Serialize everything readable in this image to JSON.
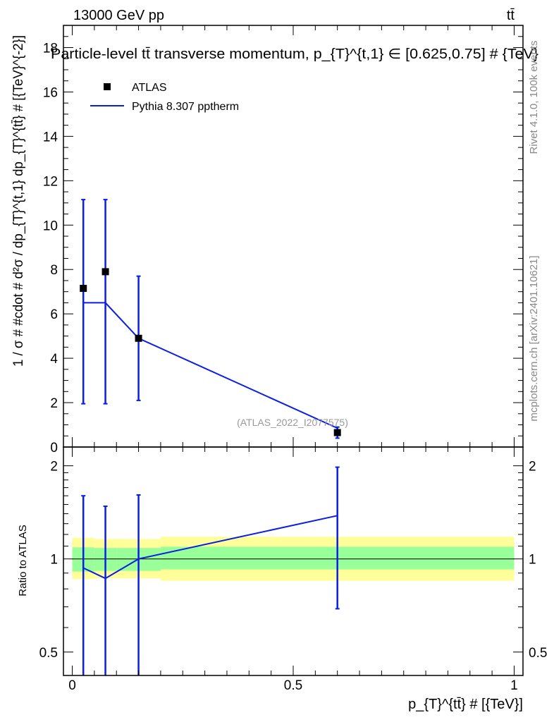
{
  "header": {
    "left": "13000 GeV pp",
    "right": "tt̄"
  },
  "side_labels": {
    "rivet": "Rivet 4.1.0,  100k events",
    "mcplots": "mcplots.cern.ch [arXiv:2401.10621]"
  },
  "watermark": "(ATLAS_2022_I2077575)",
  "colors": {
    "mc": "#0a1ee6",
    "data": "#000000",
    "band_inner": "#99ff99",
    "band_outer": "#ffff99"
  },
  "chart_data": [
    {
      "type": "line",
      "panel": "main",
      "title": "Particle-level tt̄ transverse momentum, p_{T}^{t,1} ∈ [0.625,0.75] # {TeV}",
      "ylabel": "1 / σ # #cdot # d²σ / dp_{T}^{t,1} dp_{T}^{tt̄} # [{TeV}^{-2}]",
      "xlim": [
        -0.02,
        1.02
      ],
      "ylim": [
        0,
        19
      ],
      "yticks": [
        0,
        2,
        4,
        6,
        8,
        10,
        12,
        14,
        16,
        18
      ],
      "legend": [
        "ATLAS",
        "Pythia 8.307 pptherm"
      ],
      "legend_position": "top-left",
      "data": {
        "name": "ATLAS",
        "x": [
          0.025,
          0.075,
          0.15,
          0.6
        ],
        "y": [
          7.15,
          7.9,
          4.9,
          0.65
        ],
        "err_up": [
          4.0,
          3.25,
          2.8,
          0.25
        ],
        "err_down": [
          5.2,
          5.95,
          2.8,
          0.25
        ]
      },
      "mc": {
        "name": "Pythia 8.307 pptherm",
        "x": [
          0.025,
          0.075,
          0.15,
          0.6
        ],
        "y": [
          6.5,
          6.5,
          4.9,
          0.85
        ]
      }
    },
    {
      "type": "line",
      "panel": "ratio",
      "ylabel": "Ratio to ATLAS",
      "xlabel": "p_{T}^{tt̄} # [{TeV}]",
      "yscale": "log",
      "ylim": [
        0.42,
        2.3
      ],
      "yticks": [
        0.5,
        1,
        2
      ],
      "xticks": [
        0,
        0.5,
        1
      ],
      "mc_ratio": {
        "x": [
          0.025,
          0.075,
          0.15,
          0.6
        ],
        "y": [
          0.935,
          0.865,
          1.0,
          1.38
        ],
        "err_up": [
          1.6,
          1.48,
          1.61,
          1.98
        ],
        "err_down": [
          0.36,
          0.36,
          0.39,
          0.69
        ]
      },
      "bands": [
        {
          "x0": 0.0,
          "x1": 0.05,
          "inner": [
            0.91,
            1.09
          ],
          "outer": [
            0.86,
            1.17
          ]
        },
        {
          "x0": 0.05,
          "x1": 0.1,
          "inner": [
            0.915,
            1.085
          ],
          "outer": [
            0.865,
            1.16
          ]
        },
        {
          "x0": 0.1,
          "x1": 0.2,
          "inner": [
            0.915,
            1.085
          ],
          "outer": [
            0.865,
            1.16
          ]
        },
        {
          "x0": 0.2,
          "x1": 1.0,
          "inner": [
            0.925,
            1.095
          ],
          "outer": [
            0.85,
            1.18
          ]
        }
      ]
    }
  ]
}
